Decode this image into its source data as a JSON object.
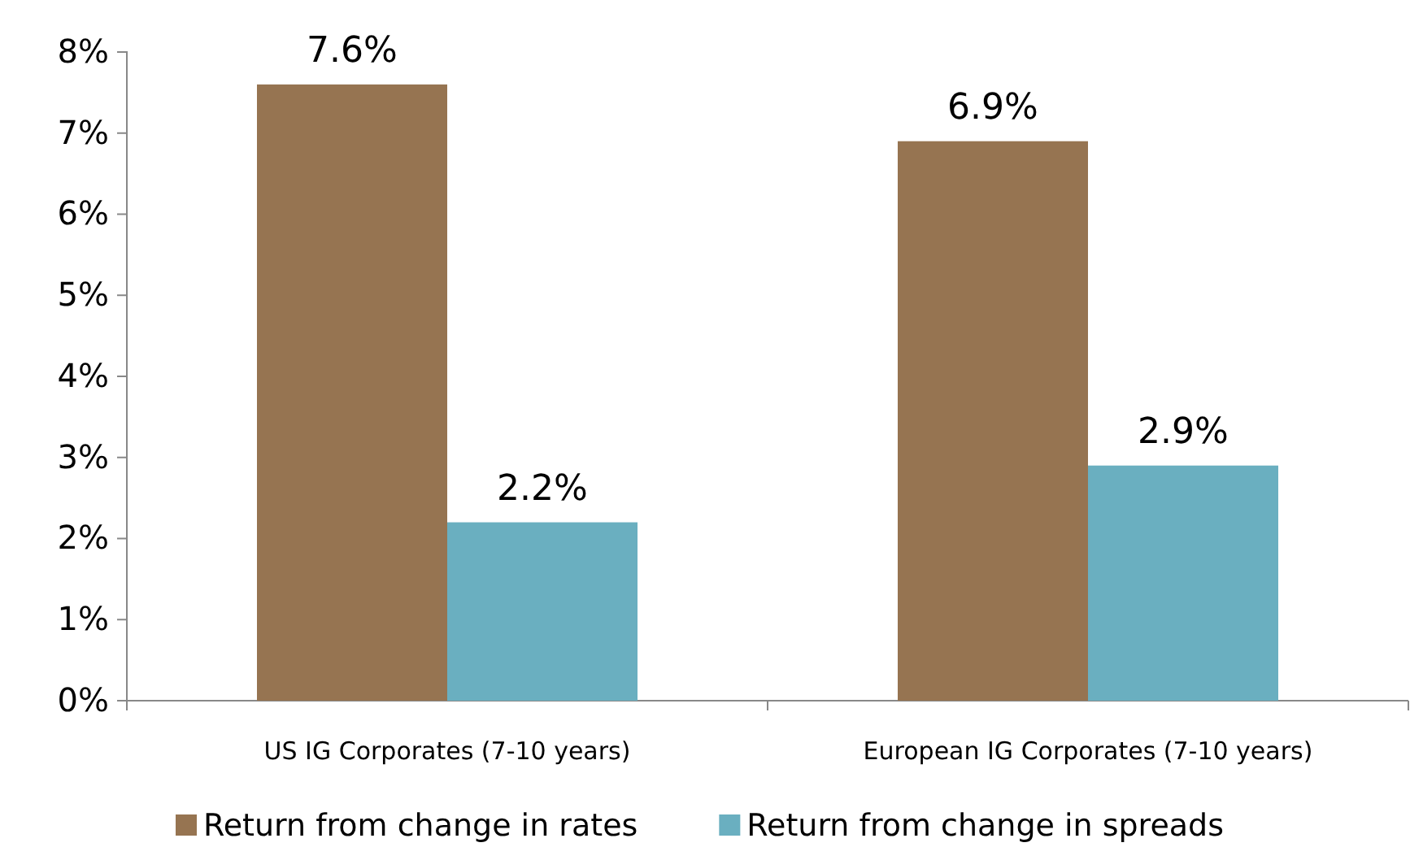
{
  "chart_data": {
    "type": "bar",
    "categories": [
      "US IG Corporates (7-10 years)",
      "European IG Corporates (7-10 years)"
    ],
    "series": [
      {
        "name": "Return from change in rates",
        "color": "#967451",
        "values": [
          7.6,
          6.9
        ],
        "value_labels": [
          "7.6%",
          "6.9%"
        ]
      },
      {
        "name": "Return from change in spreads",
        "color": "#6aafc0",
        "values": [
          2.2,
          2.9
        ],
        "value_labels": [
          "2.2%",
          "2.9%"
        ]
      }
    ],
    "ylim": [
      0,
      8
    ],
    "yticks": [
      {
        "value": 0,
        "label": "0%"
      },
      {
        "value": 1,
        "label": "1%"
      },
      {
        "value": 2,
        "label": "2%"
      },
      {
        "value": 3,
        "label": "3%"
      },
      {
        "value": 4,
        "label": "4%"
      },
      {
        "value": 5,
        "label": "5%"
      },
      {
        "value": 6,
        "label": "6%"
      },
      {
        "value": 7,
        "label": "7%"
      },
      {
        "value": 8,
        "label": "8%"
      }
    ],
    "grid": false,
    "legend": "bottom"
  }
}
